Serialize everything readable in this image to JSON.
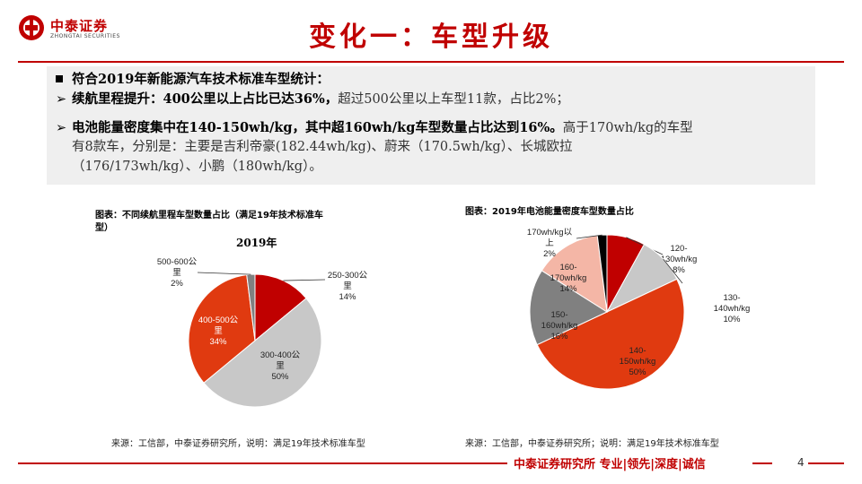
{
  "brand": {
    "name_cn": "中泰证券",
    "name_en": "ZHONGTAI SECURITIES",
    "color": "#c00000"
  },
  "title": "变化一：车型升级",
  "summary": {
    "heading": "符合2019年新能源汽车技术标准车型统计：",
    "bullet1_bold": "续航里程提升：400公里以上占比已达36%，",
    "bullet1_rest": "超过500公里以上车型11款，占比2%；",
    "bullet2_bold": "电池能量密度集中在140-150wh/kg，其中超160wh/kg车型数量占比达到16%。",
    "bullet2_rest": "高于170wh/kg的车型",
    "bullet2_line2": "有8款车，分别是：主要是吉利帝豪(182.44wh/kg)、蔚来（170.5wh/kg）、长城欧拉",
    "bullet2_line3": "（176/173wh/kg）、小鹏（180wh/kg）。"
  },
  "chart_left": {
    "caption_line1": "图表：不同续航里程车型数量占比（满足19年技术标准车",
    "caption_line2": "型）",
    "year": "2019年",
    "source": "来源：工信部，中泰证券研究所，说明：满足19年技术标准车型"
  },
  "chart_right": {
    "caption": "图表：2019年电池能量密度车型数量占比",
    "source": "来源：工信部，中泰证券研究所；说明：满足19年技术标准车型"
  },
  "chart_data": [
    {
      "type": "pie",
      "title": "2019年",
      "slices": [
        {
          "label": [
            "250-300公",
            "里"
          ],
          "pct_label": "14%",
          "value": 14,
          "color": "#c00000"
        },
        {
          "label": [
            "300-400公",
            "里"
          ],
          "pct_label": "50%",
          "value": 50,
          "color": "#c8c8c8"
        },
        {
          "label": [
            "400-500公",
            "里"
          ],
          "pct_label": "34%",
          "value": 34,
          "color": "#e03a10"
        },
        {
          "label": [
            "500-600公",
            "里"
          ],
          "pct_label": "2%",
          "value": 2,
          "color": "#808080"
        }
      ]
    },
    {
      "type": "pie",
      "title": "",
      "slices": [
        {
          "label": [
            "120-",
            "130wh/kg"
          ],
          "pct_label": "8%",
          "value": 8,
          "color": "#c00000"
        },
        {
          "label": [
            "130-",
            "140wh/kg"
          ],
          "pct_label": "10%",
          "value": 10,
          "color": "#c8c8c8"
        },
        {
          "label": [
            "140-",
            "150wh/kg"
          ],
          "pct_label": "50%",
          "value": 50,
          "color": "#e03a10"
        },
        {
          "label": [
            "150-",
            "160wh/kg"
          ],
          "pct_label": "16%",
          "value": 16,
          "color": "#808080"
        },
        {
          "label": [
            "160-",
            "170wh/kg"
          ],
          "pct_label": "14%",
          "value": 14,
          "color": "#f4b6a6"
        },
        {
          "label": [
            "170wh/kg以",
            "上"
          ],
          "pct_label": "2%",
          "value": 2,
          "color": "#000000"
        }
      ]
    }
  ],
  "footer": {
    "text": "中泰证券研究所 专业|领先|深度|诚信",
    "page": "4"
  }
}
